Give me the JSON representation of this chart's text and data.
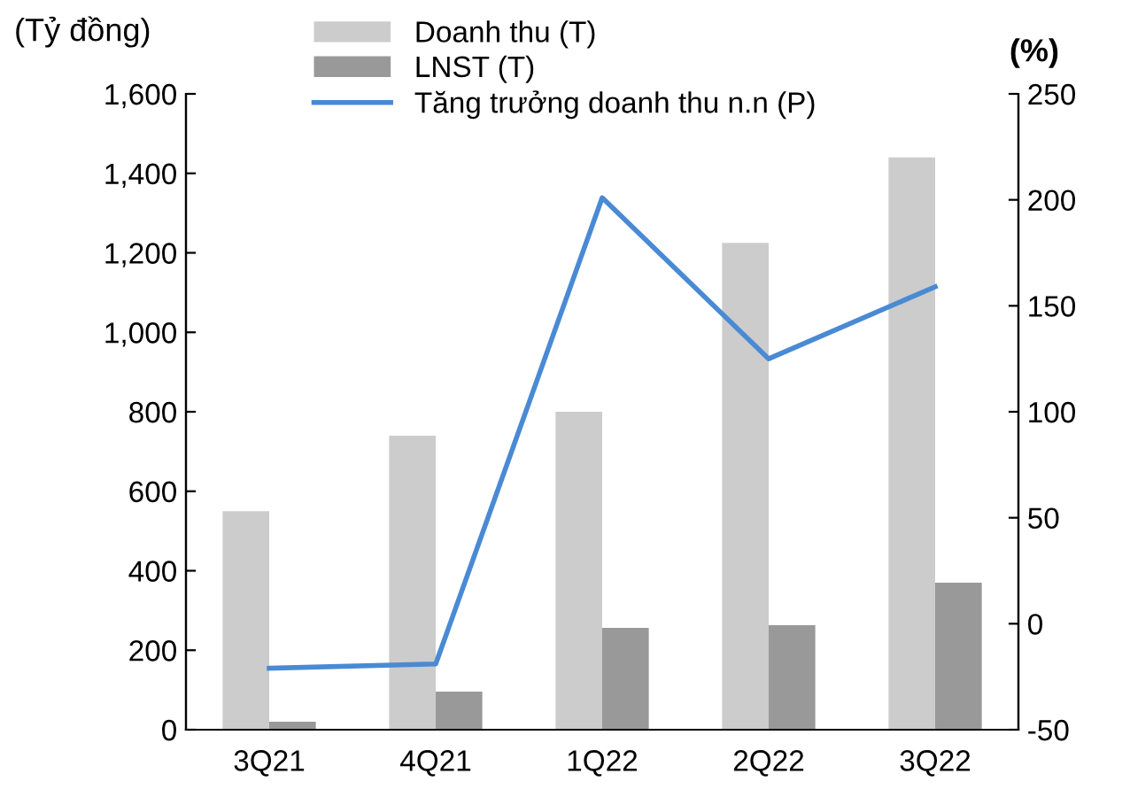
{
  "chart_data": {
    "type": "bar",
    "ylabel": "(Tỷ đồng)",
    "y2label": "(%)",
    "categories": [
      "3Q21",
      "4Q21",
      "1Q22",
      "2Q22",
      "3Q22"
    ],
    "series": [
      {
        "name": "Doanh thu (T)",
        "color": "#cccccc",
        "values": [
          550,
          740,
          800,
          1225,
          1440
        ]
      },
      {
        "name": "LNST (T)",
        "color": "#999999",
        "values": [
          20,
          96,
          256,
          263,
          370
        ]
      },
      {
        "name": "Tăng trưởng doanh thu n.n (P)",
        "type": "line",
        "axis": "y2",
        "color": "#4a8ad4",
        "values": [
          -21,
          -19,
          201,
          125,
          159
        ]
      }
    ],
    "ylim": [
      0,
      1600
    ],
    "yticks": [
      0,
      {
        "value": 200,
        "label": "200"
      },
      {
        "value": 400,
        "label": "400"
      },
      {
        "value": 600,
        "label": "600"
      },
      {
        "value": 800,
        "label": "800"
      },
      {
        "value": 1000,
        "label": "1,000"
      },
      {
        "value": 1200,
        "label": "1,200"
      },
      {
        "value": 1400,
        "label": "1,400"
      },
      {
        "value": 1600,
        "label": "1,600"
      }
    ],
    "y2lim": [
      -50,
      250
    ],
    "y2ticks": [
      -50,
      0,
      50,
      100,
      150,
      200,
      250
    ],
    "legend": "top",
    "grid": false,
    "marker": "none",
    "line_style": "solid"
  }
}
